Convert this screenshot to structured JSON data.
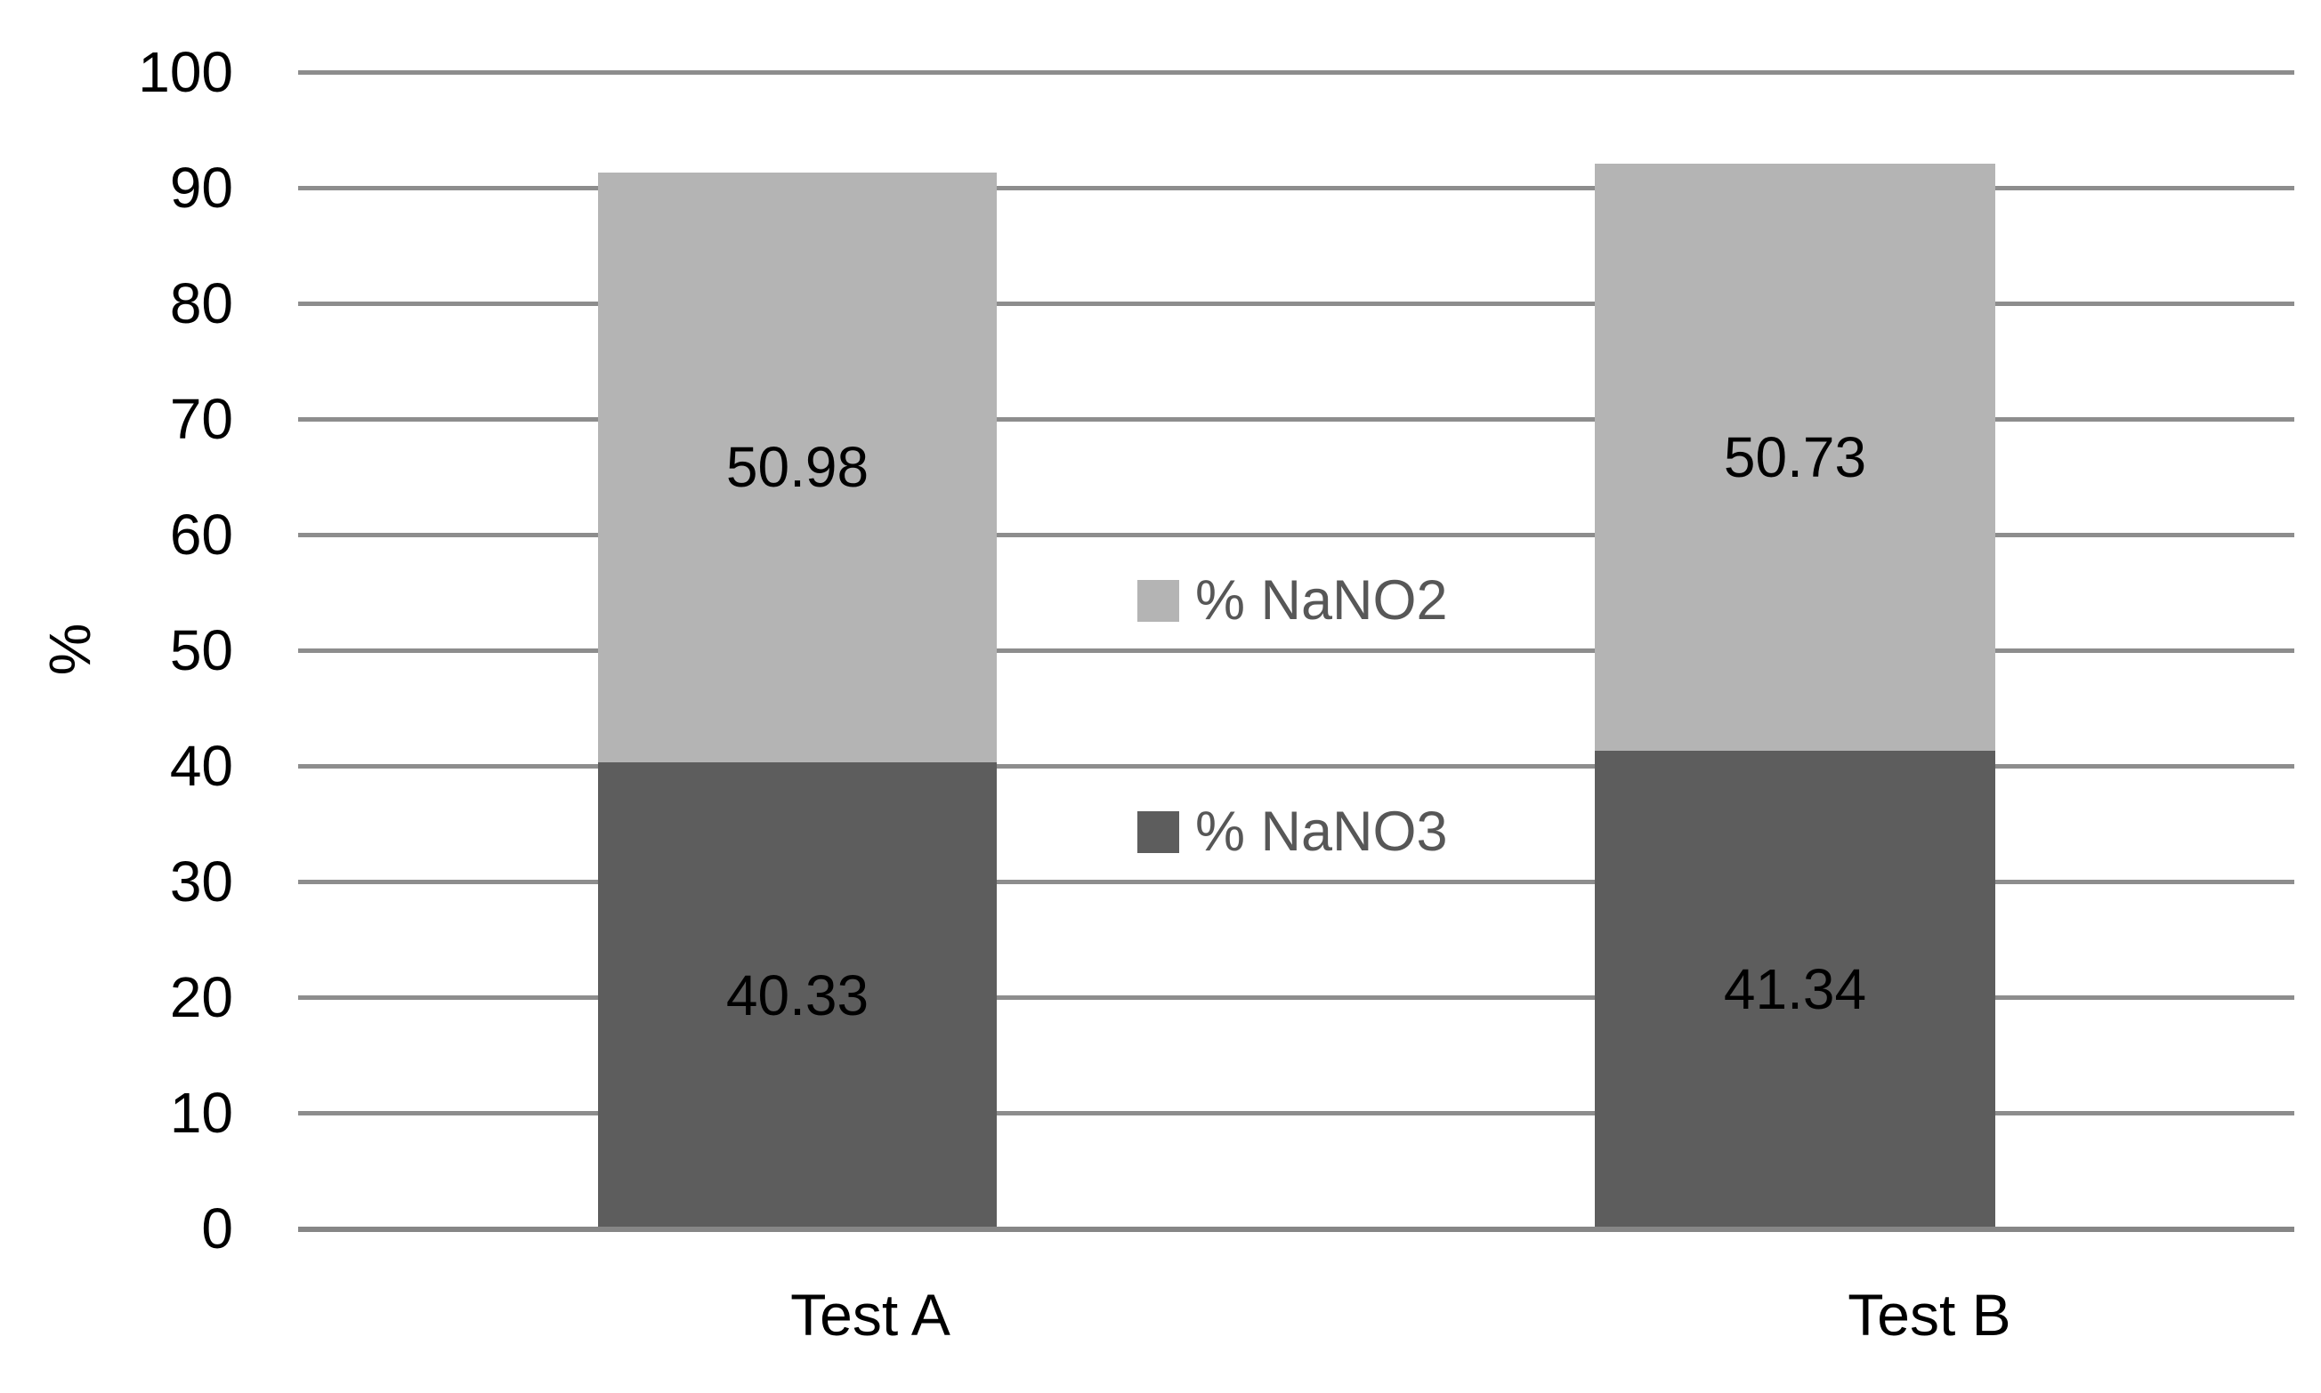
{
  "chart_data": {
    "type": "bar",
    "stacked": true,
    "title": "",
    "ylabel": "%",
    "xlabel": "",
    "categories": [
      "Test A",
      "Test B"
    ],
    "series": [
      {
        "name": "% NaNO2",
        "color": "#b4b4b4",
        "values": [
          50.98,
          50.73
        ]
      },
      {
        "name": "% NaNO3",
        "color": "#5d5d5d",
        "values": [
          40.33,
          41.34
        ]
      }
    ],
    "stack_order_bottom_to_top": [
      "% NaNO3",
      "% NaNO2"
    ],
    "ylim": [
      0,
      100
    ],
    "yticks": [
      0,
      10,
      20,
      30,
      40,
      50,
      60,
      70,
      80,
      90,
      100
    ],
    "grid": "horizontal",
    "gridline_color": "#8d8d8d",
    "axis_line_color": "#868686",
    "data_label_color": "#000000",
    "axis_text_color": "#000000",
    "legend_text_color": "#575757",
    "legend_position": "middle-of-plot",
    "background_color": "#ffffff"
  }
}
